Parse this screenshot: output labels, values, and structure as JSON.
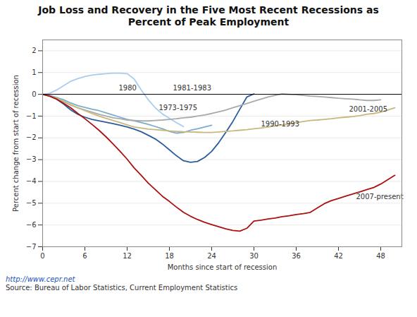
{
  "chart_data": {
    "type": "line",
    "title": "Job Loss and Recovery in the Five Most Recent Recessions as\nPercent of Peak Employment",
    "xlabel": "Months since start of recession",
    "ylabel": "Percent change from start of recession",
    "captions": [
      "http://www.cepr.net",
      "Source: Bureau of Labor Statistics, Current Employment Statistics"
    ],
    "xlim": [
      0,
      51
    ],
    "ylim": [
      -7,
      2.5
    ],
    "xticks": [
      0,
      6,
      12,
      18,
      24,
      30,
      36,
      42,
      48
    ],
    "yticks": [
      -7,
      -6,
      -5,
      -4,
      -3,
      -2,
      -1,
      0,
      1,
      2
    ],
    "grid": true,
    "hlines": [
      0
    ],
    "series": [
      {
        "name": "1973-1975",
        "color": "#7AADCC",
        "label_x": 16.5,
        "label_y": -0.72,
        "x": [
          0,
          1,
          2,
          3,
          4,
          5,
          6,
          7,
          8,
          9,
          10,
          11,
          12,
          13,
          14,
          15,
          16,
          17,
          18,
          19,
          20,
          21,
          22,
          23,
          24
        ],
        "values": [
          0,
          -0.05,
          -0.15,
          -0.25,
          -0.4,
          -0.52,
          -0.6,
          -0.68,
          -0.75,
          -0.85,
          -0.95,
          -1.05,
          -1.15,
          -1.22,
          -1.3,
          -1.38,
          -1.48,
          -1.58,
          -1.7,
          -1.78,
          -1.75,
          -1.65,
          -1.58,
          -1.5,
          -1.42
        ]
      },
      {
        "name": "1980",
        "color": "#AACCEE",
        "label_x": 10.8,
        "label_y": 0.18,
        "x": [
          0,
          1,
          2,
          3,
          4,
          5,
          6,
          7,
          8,
          9,
          10,
          11,
          12,
          13,
          14,
          15,
          16,
          17,
          18,
          19,
          20
        ],
        "values": [
          0,
          0.05,
          0.2,
          0.4,
          0.6,
          0.72,
          0.82,
          0.88,
          0.92,
          0.95,
          0.97,
          0.97,
          0.95,
          0.7,
          0.2,
          -0.25,
          -0.62,
          -0.9,
          -1.1,
          -1.3,
          -1.48
        ]
      },
      {
        "name": "1981-1983",
        "color": "#2B5C9E",
        "label_x": 18.5,
        "label_y": 0.18,
        "x": [
          0,
          1,
          2,
          3,
          4,
          5,
          6,
          7,
          8,
          9,
          10,
          11,
          12,
          13,
          14,
          15,
          16,
          17,
          18,
          19,
          20,
          21,
          22,
          23,
          24,
          25,
          26,
          27,
          28,
          29,
          30
        ],
        "values": [
          0,
          -0.08,
          -0.22,
          -0.45,
          -0.72,
          -0.92,
          -1.05,
          -1.15,
          -1.22,
          -1.28,
          -1.35,
          -1.42,
          -1.5,
          -1.6,
          -1.72,
          -1.88,
          -2.05,
          -2.28,
          -2.55,
          -2.82,
          -3.05,
          -3.12,
          -3.08,
          -2.9,
          -2.62,
          -2.22,
          -1.75,
          -1.25,
          -0.68,
          -0.12,
          0.02
        ]
      },
      {
        "name": "1990-1993",
        "color": "#AAAAAA",
        "label_x": 31.0,
        "label_y": -1.48,
        "x": [
          0,
          1,
          2,
          3,
          4,
          5,
          6,
          7,
          8,
          9,
          10,
          11,
          12,
          13,
          14,
          15,
          16,
          17,
          18,
          19,
          20,
          21,
          22,
          23,
          24,
          25,
          26,
          27,
          28,
          29,
          30,
          31,
          32,
          33,
          34,
          35,
          36,
          37,
          38,
          39,
          40,
          41,
          42,
          43,
          44,
          45,
          46,
          47,
          48
        ],
        "values": [
          0,
          -0.08,
          -0.2,
          -0.35,
          -0.5,
          -0.62,
          -0.72,
          -0.82,
          -0.92,
          -1.0,
          -1.08,
          -1.12,
          -1.18,
          -1.2,
          -1.22,
          -1.22,
          -1.2,
          -1.18,
          -1.15,
          -1.12,
          -1.08,
          -1.05,
          -1.0,
          -0.95,
          -0.88,
          -0.8,
          -0.72,
          -0.62,
          -0.52,
          -0.42,
          -0.32,
          -0.22,
          -0.12,
          -0.05,
          0.02,
          0.0,
          -0.02,
          -0.05,
          -0.08,
          -0.1,
          -0.12,
          -0.15,
          -0.18,
          -0.2,
          -0.22,
          -0.25,
          -0.28,
          -0.28,
          -0.25
        ]
      },
      {
        "name": "2001-2005",
        "color": "#C8B87A",
        "label_x": 43.5,
        "label_y": -0.78,
        "x": [
          0,
          1,
          2,
          3,
          4,
          5,
          6,
          7,
          8,
          9,
          10,
          11,
          12,
          13,
          14,
          15,
          16,
          17,
          18,
          19,
          20,
          21,
          22,
          23,
          24,
          25,
          26,
          27,
          28,
          29,
          30,
          31,
          32,
          33,
          34,
          35,
          36,
          37,
          38,
          39,
          40,
          41,
          42,
          43,
          44,
          45,
          46,
          47,
          48,
          49,
          50
        ],
        "values": [
          0,
          -0.08,
          -0.18,
          -0.32,
          -0.48,
          -0.62,
          -0.75,
          -0.88,
          -1.0,
          -1.1,
          -1.2,
          -1.3,
          -1.4,
          -1.5,
          -1.55,
          -1.6,
          -1.62,
          -1.65,
          -1.68,
          -1.7,
          -1.72,
          -1.73,
          -1.74,
          -1.75,
          -1.75,
          -1.73,
          -1.7,
          -1.68,
          -1.65,
          -1.62,
          -1.58,
          -1.55,
          -1.5,
          -1.45,
          -1.4,
          -1.35,
          -1.3,
          -1.25,
          -1.2,
          -1.18,
          -1.15,
          -1.12,
          -1.08,
          -1.05,
          -1.02,
          -0.98,
          -0.92,
          -0.88,
          -0.82,
          -0.72,
          -0.62
        ]
      },
      {
        "name": "2007-present",
        "color": "#AA1111",
        "label_x": 44.5,
        "label_y": -4.82,
        "x": [
          0,
          1,
          2,
          3,
          4,
          5,
          6,
          7,
          8,
          9,
          10,
          11,
          12,
          13,
          14,
          15,
          16,
          17,
          18,
          19,
          20,
          21,
          22,
          23,
          24,
          25,
          26,
          27,
          28,
          29,
          30,
          31,
          32,
          33,
          34,
          35,
          36,
          37,
          38,
          39,
          40,
          41,
          42,
          43,
          44,
          45,
          46,
          47,
          48,
          49,
          50
        ],
        "values": [
          0,
          -0.08,
          -0.22,
          -0.42,
          -0.62,
          -0.88,
          -1.12,
          -1.38,
          -1.65,
          -1.95,
          -2.28,
          -2.62,
          -2.98,
          -3.38,
          -3.72,
          -4.08,
          -4.38,
          -4.68,
          -4.92,
          -5.18,
          -5.42,
          -5.6,
          -5.75,
          -5.88,
          -5.98,
          -6.08,
          -6.18,
          -6.25,
          -6.28,
          -6.15,
          -5.82,
          -5.78,
          -5.72,
          -5.68,
          -5.62,
          -5.58,
          -5.52,
          -5.48,
          -5.42,
          -5.22,
          -5.02,
          -4.88,
          -4.78,
          -4.68,
          -4.58,
          -4.48,
          -4.38,
          -4.28,
          -4.12,
          -3.92,
          -3.72
        ]
      }
    ]
  }
}
